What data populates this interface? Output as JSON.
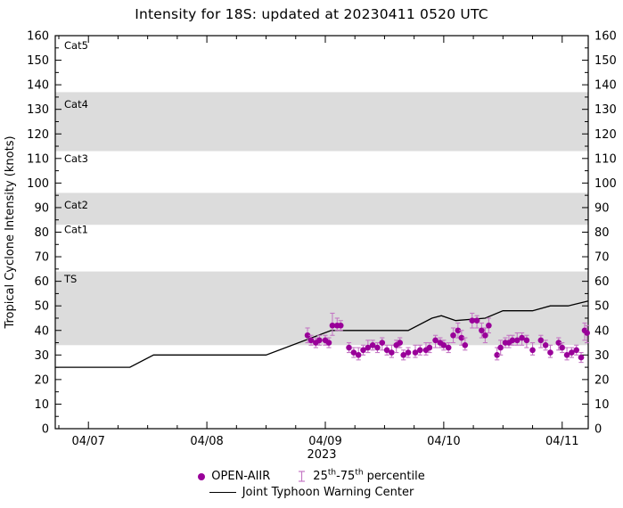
{
  "title": "Intensity for 18S: updated at 20230411 0520 UTC",
  "chart_data": {
    "type": "scatter+line",
    "title": "Intensity for 18S: updated at 20230411 0520 UTC",
    "ylabel": "Tropical Cyclone Intensity (knots)",
    "year_label": "2023",
    "ylim": [
      0,
      160
    ],
    "ytick_step": 10,
    "yticks": [
      0,
      10,
      20,
      30,
      40,
      50,
      60,
      70,
      80,
      90,
      100,
      110,
      120,
      130,
      140,
      150,
      160
    ],
    "xlim_days": [
      6.72,
      11.22
    ],
    "xticks": [
      {
        "day": 7,
        "label": "04/07"
      },
      {
        "day": 8,
        "label": "04/08"
      },
      {
        "day": 9,
        "label": "04/09"
      },
      {
        "day": 10,
        "label": "04/10"
      },
      {
        "day": 11,
        "label": "04/11"
      }
    ],
    "band_color": "#dcdcdc",
    "bands": [
      {
        "name": "TS",
        "from": 34,
        "to": 64
      },
      {
        "name": "Cat2",
        "from": 83,
        "to": 96
      },
      {
        "name": "Cat4",
        "from": 113,
        "to": 137
      }
    ],
    "category_labels": [
      {
        "text": "Cat5",
        "y": 156
      },
      {
        "text": "Cat4",
        "y": 132
      },
      {
        "text": "Cat3",
        "y": 110
      },
      {
        "text": "Cat2",
        "y": 91
      },
      {
        "text": "Cat1",
        "y": 81
      },
      {
        "text": "TS",
        "y": 61
      }
    ],
    "series": [
      {
        "name": "Joint Typhoon Warning Center",
        "type": "line",
        "color": "#000000",
        "points": [
          [
            6.72,
            25
          ],
          [
            7.35,
            25
          ],
          [
            7.55,
            30
          ],
          [
            8.5,
            30
          ],
          [
            9.05,
            40
          ],
          [
            9.7,
            40
          ],
          [
            9.9,
            45
          ],
          [
            9.98,
            46
          ],
          [
            10.1,
            44
          ],
          [
            10.35,
            45
          ],
          [
            10.5,
            48
          ],
          [
            10.75,
            48
          ],
          [
            10.9,
            50
          ],
          [
            11.05,
            50
          ],
          [
            11.22,
            52
          ]
        ]
      },
      {
        "name": "OPEN-AIIR",
        "type": "scatter",
        "color": "#990099",
        "errorbar_color": "#c478c4",
        "points_format": [
          "day",
          "intensity_kt",
          "p25",
          "p75"
        ],
        "points": [
          [
            8.85,
            38,
            35,
            41
          ],
          [
            8.88,
            36,
            34,
            38
          ],
          [
            8.92,
            35,
            33,
            37
          ],
          [
            8.95,
            36,
            34,
            38
          ],
          [
            9.0,
            36,
            34,
            38
          ],
          [
            9.03,
            35,
            33,
            37
          ],
          [
            9.06,
            42,
            38,
            47
          ],
          [
            9.1,
            42,
            40,
            45
          ],
          [
            9.13,
            42,
            40,
            44
          ],
          [
            9.2,
            33,
            31,
            35
          ],
          [
            9.24,
            31,
            29,
            33
          ],
          [
            9.28,
            30,
            28,
            33
          ],
          [
            9.32,
            32,
            30,
            34
          ],
          [
            9.36,
            33,
            31,
            36
          ],
          [
            9.4,
            34,
            32,
            36
          ],
          [
            9.44,
            33,
            31,
            35
          ],
          [
            9.48,
            35,
            32,
            37
          ],
          [
            9.52,
            32,
            30,
            34
          ],
          [
            9.56,
            31,
            29,
            34
          ],
          [
            9.6,
            34,
            31,
            36
          ],
          [
            9.63,
            35,
            33,
            37
          ],
          [
            9.66,
            30,
            28,
            32
          ],
          [
            9.7,
            31,
            29,
            33
          ],
          [
            9.76,
            31,
            29,
            34
          ],
          [
            9.8,
            32,
            30,
            34
          ],
          [
            9.85,
            32,
            30,
            35
          ],
          [
            9.88,
            33,
            31,
            35
          ],
          [
            9.93,
            36,
            33,
            38
          ],
          [
            9.97,
            35,
            33,
            37
          ],
          [
            10.0,
            34,
            32,
            36
          ],
          [
            10.04,
            33,
            31,
            35
          ],
          [
            10.08,
            38,
            35,
            41
          ],
          [
            10.12,
            40,
            37,
            43
          ],
          [
            10.15,
            37,
            34,
            40
          ],
          [
            10.18,
            34,
            32,
            37
          ],
          [
            10.24,
            44,
            41,
            47
          ],
          [
            10.28,
            44,
            41,
            46
          ],
          [
            10.32,
            40,
            37,
            43
          ],
          [
            10.35,
            38,
            35,
            41
          ],
          [
            10.38,
            42,
            39,
            45
          ],
          [
            10.45,
            30,
            28,
            33
          ],
          [
            10.48,
            33,
            30,
            36
          ],
          [
            10.52,
            35,
            33,
            37
          ],
          [
            10.55,
            35,
            33,
            38
          ],
          [
            10.58,
            36,
            34,
            38
          ],
          [
            10.62,
            36,
            34,
            39
          ],
          [
            10.66,
            37,
            34,
            39
          ],
          [
            10.7,
            36,
            33,
            38
          ],
          [
            10.75,
            32,
            30,
            35
          ],
          [
            10.82,
            36,
            33,
            38
          ],
          [
            10.86,
            34,
            32,
            36
          ],
          [
            10.9,
            31,
            29,
            34
          ],
          [
            10.97,
            35,
            32,
            37
          ],
          [
            11.0,
            33,
            31,
            35
          ],
          [
            11.04,
            30,
            28,
            33
          ],
          [
            11.08,
            31,
            29,
            33
          ],
          [
            11.12,
            32,
            30,
            34
          ],
          [
            11.16,
            29,
            27,
            31
          ],
          [
            11.19,
            40,
            36,
            43
          ],
          [
            11.21,
            39,
            35,
            42
          ]
        ]
      }
    ],
    "legend": {
      "open_aiir_label": "OPEN-AIIR",
      "percentile": {
        "b1": "25",
        "s1": "th",
        "b2": "-75",
        "s2": "th",
        "b3": " percentile"
      },
      "jtwc_label": "Joint Typhoon Warning Center",
      "position": "bottom"
    },
    "grid": false
  }
}
